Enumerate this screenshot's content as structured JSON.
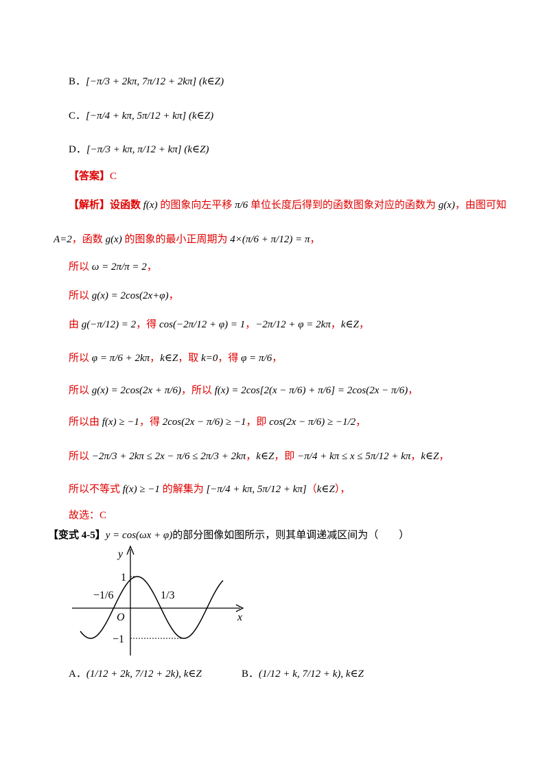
{
  "options_prev": [
    {
      "label": "B．",
      "math": "[−π/3 + 2kπ, 7π/12 + 2kπ] (k∈Z)"
    },
    {
      "label": "C．",
      "math": "[−π/4 + kπ, 5π/12 + kπ] (k∈Z)"
    },
    {
      "label": "D．",
      "math": "[−π/3 + kπ, π/12 + kπ] (k∈Z)"
    }
  ],
  "answer": {
    "tag": "【答案】",
    "value": "C"
  },
  "analysis": [
    [
      {
        "text": "【解析】设函数 "
      },
      {
        "math": "f(x)"
      },
      {
        "text": " 的图象向左平移 "
      },
      {
        "math": "π/6"
      },
      {
        "text": " 单位长度后得到的函数图象对应的函数为 "
      },
      {
        "math": "g(x)"
      },
      {
        "text": "，由图可知"
      }
    ],
    [
      {
        "math": "A=2"
      },
      {
        "text": "，函数 "
      },
      {
        "math": "g(x)"
      },
      {
        "text": " 的图象的最小正周期为 "
      },
      {
        "math": "4×(π/6 + π/12) = π"
      },
      {
        "text": "，"
      }
    ],
    [
      {
        "text": "所以 "
      },
      {
        "math": "ω = 2π/π = 2"
      },
      {
        "text": "，"
      }
    ],
    [
      {
        "text": "所以 "
      },
      {
        "math": "g(x) = 2cos(2x+φ)"
      },
      {
        "text": "，"
      }
    ],
    [
      {
        "text": "由 "
      },
      {
        "math": "g(−π/12) = 2"
      },
      {
        "text": "，得 "
      },
      {
        "math": "cos(−2π/12 + φ) = 1"
      },
      {
        "text": "，"
      },
      {
        "math": "−2π/12 + φ = 2kπ"
      },
      {
        "text": "，"
      },
      {
        "math": "k∈Z"
      },
      {
        "text": "，"
      }
    ],
    [
      {
        "text": "所以 "
      },
      {
        "math": "φ = π/6 + 2kπ"
      },
      {
        "text": "，"
      },
      {
        "math": "k∈Z"
      },
      {
        "text": "，取 "
      },
      {
        "math": "k=0"
      },
      {
        "text": "，得 "
      },
      {
        "math": "φ = π/6"
      },
      {
        "text": "，"
      }
    ],
    [
      {
        "text": "所以 "
      },
      {
        "math": "g(x) = 2cos(2x + π/6)"
      },
      {
        "text": "，所以 "
      },
      {
        "math": "f(x) = 2cos[2(x − π/6) + π/6] = 2cos(2x − π/6)"
      },
      {
        "text": "，"
      }
    ],
    [
      {
        "text": "所以由 "
      },
      {
        "math": "f(x) ≥ −1"
      },
      {
        "text": "，得 "
      },
      {
        "math": "2cos(2x − π/6) ≥ −1"
      },
      {
        "text": "，即 "
      },
      {
        "math": "cos(2x − π/6) ≥ −1/2"
      },
      {
        "text": "，"
      }
    ],
    [
      {
        "text": "所以 "
      },
      {
        "math": "−2π/3 + 2kπ ≤ 2x − π/6 ≤ 2π/3 + 2kπ"
      },
      {
        "text": "，"
      },
      {
        "math": "k∈Z"
      },
      {
        "text": "，即 "
      },
      {
        "math": "−π/4 + kπ ≤ x ≤ 5π/12 + kπ"
      },
      {
        "text": "，"
      },
      {
        "math": "k∈Z"
      },
      {
        "text": "，"
      }
    ],
    [
      {
        "text": "所以不等式 "
      },
      {
        "math": "f(x) ≥ −1"
      },
      {
        "text": " 的解集为 "
      },
      {
        "math": "[−π/4 + kπ, 5π/12 + kπ]"
      },
      {
        "text": "（"
      },
      {
        "math": "k∈Z"
      },
      {
        "text": "），"
      }
    ],
    [
      {
        "text": "故选：C"
      }
    ]
  ],
  "variant": {
    "tag": "【变式 4-5】",
    "math": "y = cos(ωx + φ)",
    "text": "的部分图像如图所示，则其单调递减区间为（　　）"
  },
  "graph": {
    "y_axis": "y",
    "x_axis": "x",
    "origin": "O",
    "top": "1",
    "bottom": "−1",
    "right_mark": "1/3",
    "left_mark": "−1/6"
  },
  "options_next": [
    {
      "label": "A．",
      "math": "(1/12 + 2k, 7/12 + 2k), k∈Z"
    },
    {
      "label": "B．",
      "math": "(1/12 + k, 7/12 + k), k∈Z"
    }
  ]
}
